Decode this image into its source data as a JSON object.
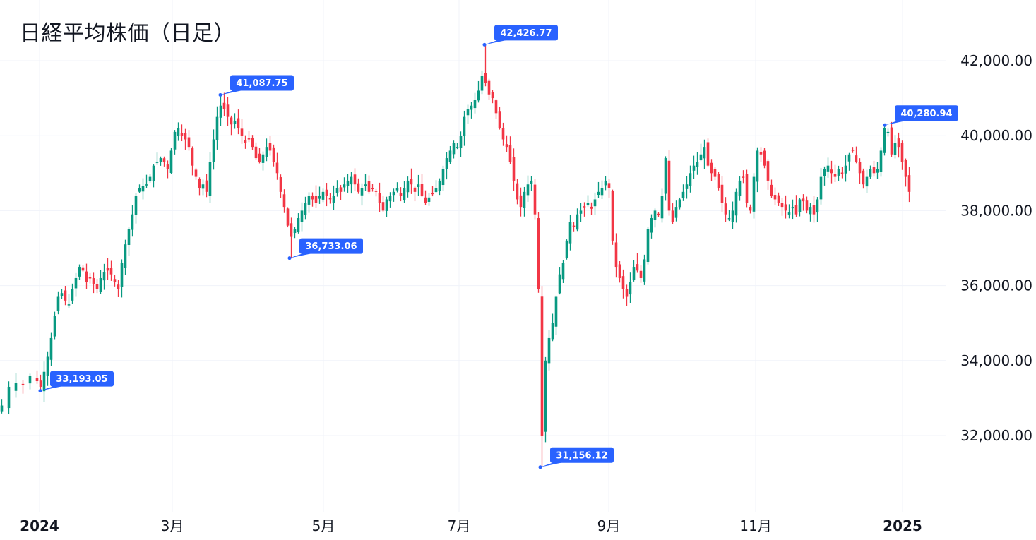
{
  "chart_data": {
    "type": "candlestick",
    "title": "日経平均株価（日足）",
    "xlabel": "",
    "ylabel": "",
    "ylim": [
      30100,
      42700
    ],
    "grid": true,
    "legend": "none",
    "colors": {
      "up": "#089981",
      "down": "#F23645",
      "callout": "#2962FF",
      "grid": "#F0F3FA",
      "text": "#131722"
    },
    "y_ticks": [
      {
        "value": 42000,
        "label": "42,000.00"
      },
      {
        "value": 40000,
        "label": "40,000.00"
      },
      {
        "value": 38000,
        "label": "38,000.00"
      },
      {
        "value": 36000,
        "label": "36,000.00"
      },
      {
        "value": 34000,
        "label": "34,000.00"
      },
      {
        "value": 32000,
        "label": "32,000.00"
      }
    ],
    "x_ticks": [
      {
        "label": "2024",
        "x": 56,
        "bold": true
      },
      {
        "label": "3月",
        "x": 244,
        "bold": false
      },
      {
        "label": "5月",
        "x": 458,
        "bold": false
      },
      {
        "label": "7月",
        "x": 650,
        "bold": false
      },
      {
        "label": "9月",
        "x": 862,
        "bold": false
      },
      {
        "label": "11月",
        "x": 1070,
        "bold": false
      },
      {
        "label": "2025",
        "x": 1278,
        "bold": true
      }
    ],
    "annotations": [
      {
        "label": "33,193.05",
        "value": 33193.05,
        "x": 57,
        "type": "low"
      },
      {
        "label": "41,087.75",
        "value": 41087.75,
        "x": 312,
        "type": "high"
      },
      {
        "label": "36,733.06",
        "value": 36733.06,
        "x": 410,
        "type": "low"
      },
      {
        "label": "42,426.77",
        "value": 42426.77,
        "x": 686,
        "type": "high"
      },
      {
        "label": "31,156.12",
        "value": 31156.12,
        "x": 765,
        "type": "low"
      },
      {
        "label": "40,280.94",
        "value": 40280.94,
        "x": 1253,
        "type": "high"
      }
    ],
    "close_anchors": [
      [
        2,
        32800
      ],
      [
        12,
        33300
      ],
      [
        22,
        33400
      ],
      [
        32,
        33350
      ],
      [
        42,
        33600
      ],
      [
        52,
        33450
      ],
      [
        57,
        33300
      ],
      [
        62,
        33700
      ],
      [
        67,
        34100
      ],
      [
        72,
        34600
      ],
      [
        77,
        35200
      ],
      [
        82,
        35700
      ],
      [
        87,
        35800
      ],
      [
        92,
        35600
      ],
      [
        97,
        35500
      ],
      [
        102,
        35900
      ],
      [
        107,
        36200
      ],
      [
        112,
        36500
      ],
      [
        117,
        36400
      ],
      [
        122,
        36100
      ],
      [
        127,
        36200
      ],
      [
        132,
        36050
      ],
      [
        137,
        35900
      ],
      [
        142,
        36200
      ],
      [
        147,
        36350
      ],
      [
        152,
        36400
      ],
      [
        157,
        36300
      ],
      [
        162,
        36100
      ],
      [
        167,
        35900
      ],
      [
        172,
        36600
      ],
      [
        177,
        37100
      ],
      [
        182,
        37500
      ],
      [
        187,
        37900
      ],
      [
        192,
        38400
      ],
      [
        197,
        38600
      ],
      [
        202,
        38650
      ],
      [
        207,
        38700
      ],
      [
        212,
        38900
      ],
      [
        217,
        39200
      ],
      [
        222,
        39300
      ],
      [
        227,
        39400
      ],
      [
        232,
        39300
      ],
      [
        237,
        39100
      ],
      [
        242,
        39600
      ],
      [
        247,
        40100
      ],
      [
        252,
        40200
      ],
      [
        257,
        40000
      ],
      [
        262,
        39900
      ],
      [
        267,
        39700
      ],
      [
        272,
        39200
      ],
      [
        277,
        38900
      ],
      [
        282,
        38600
      ],
      [
        287,
        38700
      ],
      [
        292,
        38500
      ],
      [
        297,
        39300
      ],
      [
        302,
        39900
      ],
      [
        307,
        40500
      ],
      [
        312,
        40800
      ],
      [
        317,
        40700
      ],
      [
        322,
        40500
      ],
      [
        327,
        40300
      ],
      [
        332,
        40400
      ],
      [
        337,
        40200
      ],
      [
        342,
        40000
      ],
      [
        347,
        39800
      ],
      [
        352,
        39900
      ],
      [
        357,
        39700
      ],
      [
        362,
        39400
      ],
      [
        367,
        39300
      ],
      [
        372,
        39500
      ],
      [
        377,
        39700
      ],
      [
        382,
        39600
      ],
      [
        387,
        39300
      ],
      [
        392,
        39000
      ],
      [
        397,
        38500
      ],
      [
        402,
        38100
      ],
      [
        407,
        37600
      ],
      [
        412,
        37300
      ],
      [
        417,
        37500
      ],
      [
        422,
        37800
      ],
      [
        427,
        38000
      ],
      [
        432,
        38200
      ],
      [
        437,
        38400
      ],
      [
        442,
        38300
      ],
      [
        447,
        38200
      ],
      [
        452,
        38400
      ],
      [
        457,
        38500
      ],
      [
        462,
        38400
      ],
      [
        467,
        38300
      ],
      [
        472,
        38400
      ],
      [
        477,
        38600
      ],
      [
        482,
        38500
      ],
      [
        487,
        38700
      ],
      [
        492,
        38800
      ],
      [
        497,
        38900
      ],
      [
        502,
        38700
      ],
      [
        507,
        38500
      ],
      [
        512,
        38600
      ],
      [
        517,
        38700
      ],
      [
        522,
        38500
      ],
      [
        527,
        38600
      ],
      [
        532,
        38500
      ],
      [
        537,
        38200
      ],
      [
        542,
        38000
      ],
      [
        547,
        38300
      ],
      [
        552,
        38400
      ],
      [
        557,
        38500
      ],
      [
        562,
        38600
      ],
      [
        567,
        38400
      ],
      [
        572,
        38600
      ],
      [
        577,
        38800
      ],
      [
        582,
        38700
      ],
      [
        587,
        38500
      ],
      [
        592,
        38700
      ],
      [
        597,
        38400
      ],
      [
        602,
        38200
      ],
      [
        607,
        38350
      ],
      [
        612,
        38450
      ],
      [
        617,
        38600
      ],
      [
        622,
        38800
      ],
      [
        627,
        39100
      ],
      [
        632,
        39400
      ],
      [
        637,
        39600
      ],
      [
        642,
        39800
      ],
      [
        647,
        39700
      ],
      [
        652,
        40000
      ],
      [
        657,
        40500
      ],
      [
        662,
        40700
      ],
      [
        667,
        40800
      ],
      [
        672,
        40950
      ],
      [
        677,
        41200
      ],
      [
        682,
        41600
      ],
      [
        687,
        41400
      ],
      [
        692,
        41100
      ],
      [
        697,
        41000
      ],
      [
        702,
        40600
      ],
      [
        707,
        40200
      ],
      [
        712,
        39900
      ],
      [
        717,
        39700
      ],
      [
        722,
        39300
      ],
      [
        727,
        38800
      ],
      [
        732,
        38300
      ],
      [
        737,
        38100
      ],
      [
        742,
        38500
      ],
      [
        747,
        38700
      ],
      [
        752,
        38800
      ],
      [
        757,
        37900
      ],
      [
        762,
        35900
      ],
      [
        767,
        32000
      ],
      [
        772,
        34000
      ],
      [
        777,
        34600
      ],
      [
        782,
        35000
      ],
      [
        787,
        35700
      ],
      [
        792,
        36300
      ],
      [
        797,
        36600
      ],
      [
        802,
        37200
      ],
      [
        807,
        37700
      ],
      [
        812,
        37600
      ],
      [
        817,
        37900
      ],
      [
        822,
        38000
      ],
      [
        827,
        38100
      ],
      [
        832,
        38200
      ],
      [
        837,
        38050
      ],
      [
        842,
        38300
      ],
      [
        847,
        38500
      ],
      [
        852,
        38600
      ],
      [
        857,
        38800
      ],
      [
        862,
        38600
      ],
      [
        867,
        37200
      ],
      [
        872,
        36500
      ],
      [
        877,
        36200
      ],
      [
        882,
        35900
      ],
      [
        887,
        35700
      ],
      [
        892,
        36100
      ],
      [
        897,
        36500
      ],
      [
        902,
        36400
      ],
      [
        907,
        36200
      ],
      [
        912,
        36700
      ],
      [
        917,
        37500
      ],
      [
        922,
        37800
      ],
      [
        927,
        38000
      ],
      [
        932,
        37900
      ],
      [
        937,
        38400
      ],
      [
        942,
        39400
      ],
      [
        947,
        38000
      ],
      [
        952,
        37700
      ],
      [
        957,
        38100
      ],
      [
        962,
        38300
      ],
      [
        967,
        38500
      ],
      [
        972,
        38700
      ],
      [
        977,
        39000
      ],
      [
        982,
        39200
      ],
      [
        987,
        39300
      ],
      [
        992,
        39500
      ],
      [
        997,
        39700
      ],
      [
        1002,
        39200
      ],
      [
        1007,
        39000
      ],
      [
        1012,
        38900
      ],
      [
        1017,
        38600
      ],
      [
        1022,
        38200
      ],
      [
        1027,
        37900
      ],
      [
        1032,
        37800
      ],
      [
        1037,
        38000
      ],
      [
        1042,
        38500
      ],
      [
        1047,
        38800
      ],
      [
        1052,
        38900
      ],
      [
        1057,
        38200
      ],
      [
        1062,
        38000
      ],
      [
        1067,
        38900
      ],
      [
        1072,
        39600
      ],
      [
        1077,
        39500
      ],
      [
        1082,
        39200
      ],
      [
        1087,
        38800
      ],
      [
        1092,
        38400
      ],
      [
        1097,
        38300
      ],
      [
        1102,
        38200
      ],
      [
        1107,
        38100
      ],
      [
        1112,
        38000
      ],
      [
        1117,
        37950
      ],
      [
        1122,
        38100
      ],
      [
        1127,
        37900
      ],
      [
        1132,
        38300
      ],
      [
        1137,
        38250
      ],
      [
        1142,
        38000
      ],
      [
        1147,
        38100
      ],
      [
        1152,
        37900
      ],
      [
        1157,
        38300
      ],
      [
        1162,
        38900
      ],
      [
        1167,
        39100
      ],
      [
        1172,
        39200
      ],
      [
        1177,
        39000
      ],
      [
        1182,
        38900
      ],
      [
        1187,
        39100
      ],
      [
        1192,
        39000
      ],
      [
        1197,
        39200
      ],
      [
        1202,
        39500
      ],
      [
        1207,
        39600
      ],
      [
        1212,
        39300
      ],
      [
        1217,
        39000
      ],
      [
        1222,
        38700
      ],
      [
        1227,
        38900
      ],
      [
        1232,
        39100
      ],
      [
        1237,
        39000
      ],
      [
        1242,
        39100
      ],
      [
        1247,
        39600
      ],
      [
        1252,
        40200
      ],
      [
        1257,
        40100
      ],
      [
        1262,
        39500
      ],
      [
        1267,
        39800
      ],
      [
        1272,
        39700
      ],
      [
        1277,
        39300
      ],
      [
        1282,
        38900
      ],
      [
        1287,
        38500
      ]
    ]
  }
}
